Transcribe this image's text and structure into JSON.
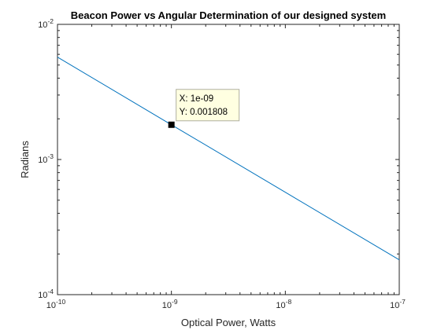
{
  "chart_data": {
    "type": "line",
    "title": "Beacon Power vs Angular Determination of our designed system",
    "xlabel": "Optical Power, Watts",
    "ylabel": "Radians",
    "x_scale": "log",
    "y_scale": "log",
    "xlim": [
      1e-10,
      1e-07
    ],
    "ylim": [
      0.0001,
      0.01
    ],
    "x_ticks": [
      {
        "value": 1e-10,
        "base": "10",
        "exp": "-10"
      },
      {
        "value": 1e-09,
        "base": "10",
        "exp": "-9"
      },
      {
        "value": 1e-08,
        "base": "10",
        "exp": "-8"
      },
      {
        "value": 1e-07,
        "base": "10",
        "exp": "-7"
      }
    ],
    "y_ticks": [
      {
        "value": 0.0001,
        "base": "10",
        "exp": "-4"
      },
      {
        "value": 0.001,
        "base": "10",
        "exp": "-3"
      },
      {
        "value": 0.01,
        "base": "10",
        "exp": "-2"
      }
    ],
    "grid": false,
    "series": [
      {
        "color": "#0072BD",
        "x": [
          1e-10,
          1e-09,
          1e-08,
          1e-07
        ],
        "y": [
          0.00572,
          0.001808,
          0.000572,
          0.000181
        ]
      }
    ],
    "datatip": {
      "x": 1e-09,
      "y": 0.001808,
      "x_text": "X: 1e-09",
      "y_text": "Y: 0.001808"
    }
  }
}
